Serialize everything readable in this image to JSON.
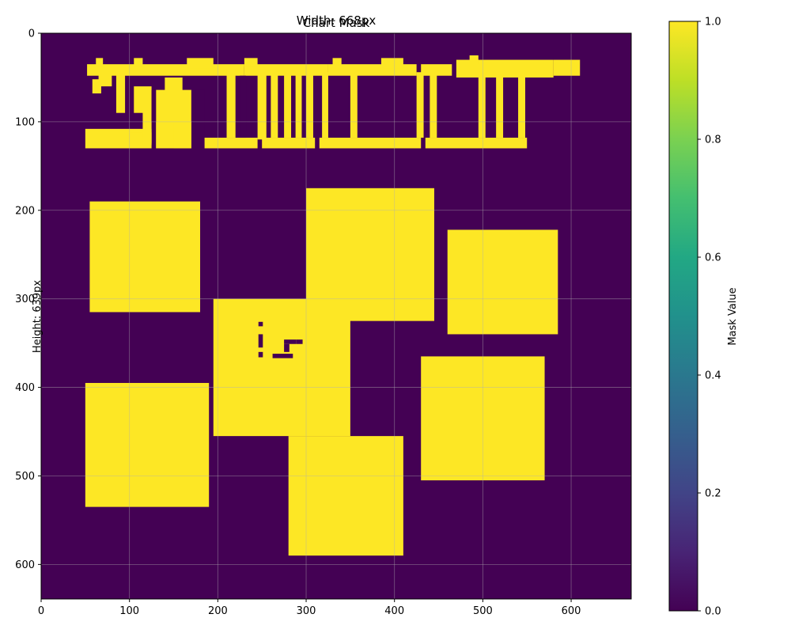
{
  "chart_data": {
    "type": "heatmap",
    "title": "Chart Mask",
    "overlay_title": "Width: 668px",
    "ylabel": "Height: 639px",
    "colorbar_label": "Mask Value",
    "xlim": [
      0,
      668
    ],
    "ylim": [
      639,
      0
    ],
    "x_ticks": [
      0,
      100,
      200,
      300,
      400,
      500,
      600
    ],
    "y_ticks": [
      0,
      100,
      200,
      300,
      400,
      500,
      600
    ],
    "colorbar_ticks": [
      "0.0",
      "0.2",
      "0.4",
      "0.6",
      "0.8",
      "1.0"
    ],
    "colorbar_range": [
      0.0,
      1.0
    ],
    "colormap": "viridis",
    "background_value": 0,
    "grid": true,
    "colors": {
      "low": "#440154",
      "high": "#fde725"
    },
    "regions": [
      {
        "name": "text-mask-band",
        "value": 1,
        "x": [
          50,
          610
        ],
        "y": [
          30,
          130
        ]
      },
      {
        "name": "block-1",
        "value": 1,
        "x": [
          55,
          180
        ],
        "y": [
          190,
          315
        ]
      },
      {
        "name": "block-2",
        "value": 1,
        "x": [
          300,
          445
        ],
        "y": [
          175,
          325
        ]
      },
      {
        "name": "block-3",
        "value": 1,
        "x": [
          460,
          585
        ],
        "y": [
          222,
          340
        ]
      },
      {
        "name": "block-4",
        "value": 1,
        "x": [
          195,
          350
        ],
        "y": [
          300,
          455
        ]
      },
      {
        "name": "block-5",
        "value": 1,
        "x": [
          50,
          190
        ],
        "y": [
          395,
          535
        ]
      },
      {
        "name": "block-6",
        "value": 1,
        "x": [
          280,
          410
        ],
        "y": [
          455,
          590
        ]
      },
      {
        "name": "block-7",
        "value": 1,
        "x": [
          430,
          570
        ],
        "y": [
          365,
          505
        ]
      }
    ]
  }
}
